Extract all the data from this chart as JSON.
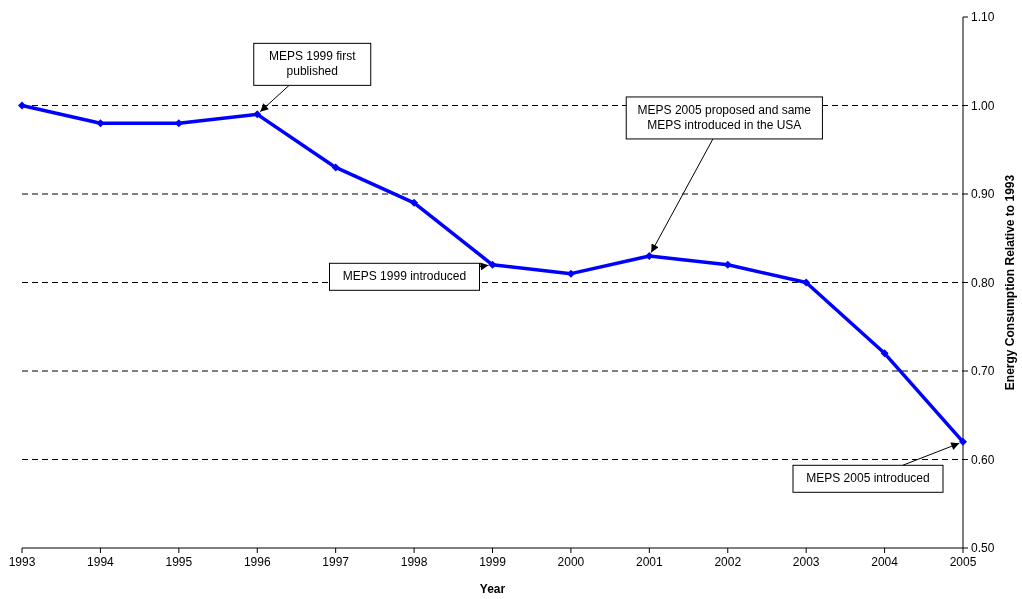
{
  "chart_data": {
    "type": "line",
    "xlabel": "Year",
    "ylabel": "Energy Consumption Relative to 1993",
    "x": [
      1993,
      1994,
      1995,
      1996,
      1997,
      1998,
      1999,
      2000,
      2001,
      2002,
      2003,
      2004,
      2005
    ],
    "series": [
      {
        "color": "#0000ff",
        "values": [
          1.0,
          0.98,
          0.98,
          0.99,
          0.93,
          0.89,
          0.82,
          0.81,
          0.83,
          0.82,
          0.8,
          0.72,
          0.62
        ]
      }
    ],
    "xlim": [
      1993,
      2005
    ],
    "xticks": [
      1993,
      1994,
      1995,
      1996,
      1997,
      1998,
      1999,
      2000,
      2001,
      2002,
      2003,
      2004,
      2005
    ],
    "ylim": [
      0.5,
      1.1
    ],
    "yticks": [
      {
        "value": 0.5,
        "label": "0.50"
      },
      {
        "value": 0.6,
        "label": "0.60"
      },
      {
        "value": 0.7,
        "label": "0.70"
      },
      {
        "value": 0.8,
        "label": "0.80"
      },
      {
        "value": 0.9,
        "label": "0.90"
      },
      {
        "value": 1.0,
        "label": "1.00"
      },
      {
        "value": 1.1,
        "label": "1.10"
      }
    ],
    "grid": "y",
    "marker": "diamond",
    "line_style": "solid",
    "annotations": [
      {
        "text": "MEPS 1999 first published",
        "x": 1996,
        "y": 0.99
      },
      {
        "text": "MEPS 1999 introduced",
        "x": 1999,
        "y": 0.82
      },
      {
        "text": "MEPS 2005 proposed and same MEPS introduced in the USA",
        "x": 2001,
        "y": 0.83
      },
      {
        "text": "MEPS 2005 introduced",
        "x": 2005,
        "y": 0.62
      }
    ]
  }
}
